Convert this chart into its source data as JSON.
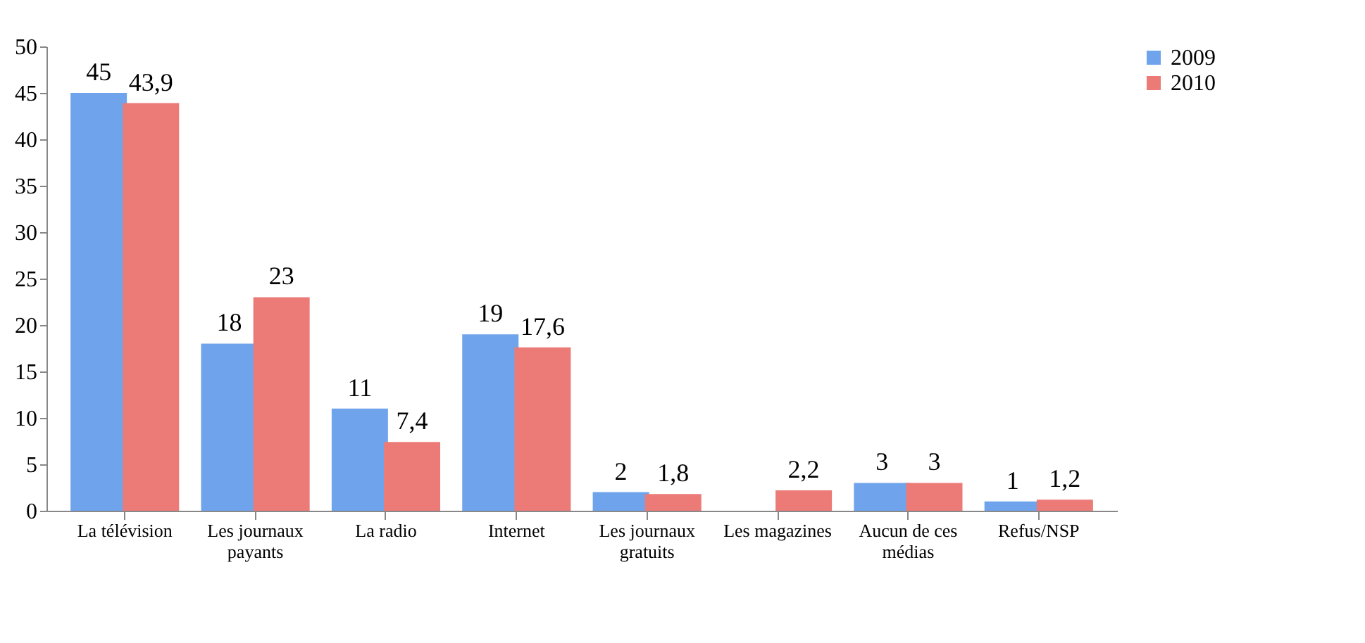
{
  "chart_data": {
    "type": "bar",
    "categories": [
      "La télévision",
      "Les journaux payants",
      "La radio",
      "Internet",
      "Les journaux gratuits",
      "Les magazines",
      "Aucun de ces médias",
      "Refus/NSP"
    ],
    "series": [
      {
        "name": "2009",
        "color": "#6fa3ec",
        "values": [
          45,
          18,
          11,
          19,
          2,
          null,
          3,
          1
        ],
        "value_labels": [
          "45",
          "18",
          "11",
          "19",
          "2",
          null,
          "3",
          "1"
        ]
      },
      {
        "name": "2010",
        "color": "#ec7b78",
        "values": [
          43.9,
          23,
          7.4,
          17.6,
          1.8,
          2.2,
          3,
          1.2
        ],
        "value_labels": [
          "43,9",
          "23",
          "7,4",
          "17,6",
          "1,8",
          "2,2",
          "3",
          "1,2"
        ]
      }
    ],
    "ylim": [
      0,
      50
    ],
    "yticks": [
      0,
      5,
      10,
      15,
      20,
      25,
      30,
      35,
      40,
      45,
      50
    ],
    "grid": false,
    "legend": "right"
  }
}
